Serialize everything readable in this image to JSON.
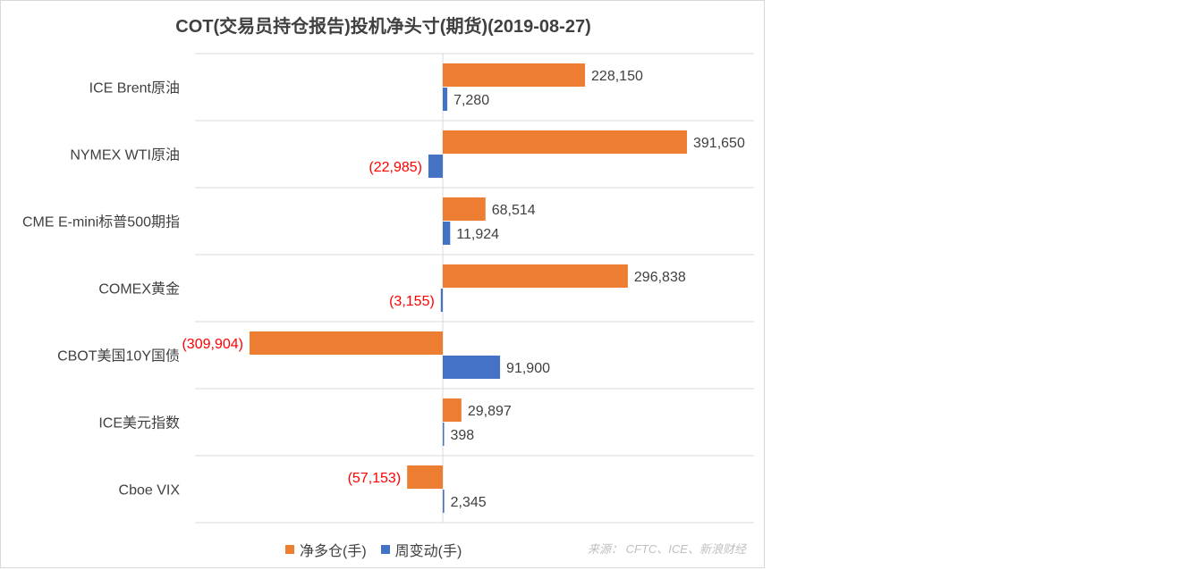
{
  "chart_data": {
    "type": "bar",
    "orientation": "horizontal",
    "title": "COT(交易员持仓报告)投机净头寸(期货)(2019-08-27)",
    "categories": [
      "ICE Brent原油",
      "NYMEX WTI原油",
      "CME E-mini标普500期指",
      "COMEX黄金",
      "CBOT美国10Y国债",
      "ICE美元指数",
      "Cboe VIX"
    ],
    "series": [
      {
        "name": "净多仓(手)",
        "color": "#ED7D31",
        "values": [
          228150,
          391650,
          68514,
          296838,
          -309904,
          29897,
          -57153
        ],
        "labels": [
          "228,150",
          "391,650",
          "68,514",
          "296,838",
          "(309,904)",
          "29,897",
          "(57,153)"
        ]
      },
      {
        "name": "周变动(手)",
        "color": "#4472C4",
        "values": [
          7280,
          -22985,
          11924,
          -3155,
          91900,
          398,
          2345
        ],
        "labels": [
          "7,280",
          "(22,985)",
          "11,924",
          "(3,155)",
          "91,900",
          "398",
          "2,345"
        ]
      }
    ],
    "xlim": [
      -391650,
      450000
    ],
    "negative_label_color": "#FF0000",
    "positive_label_color": "#404040",
    "grid": "horizontal category separators",
    "legend_position": "bottom"
  },
  "source_note": "来源： CFTC、ICE、新浪财经"
}
